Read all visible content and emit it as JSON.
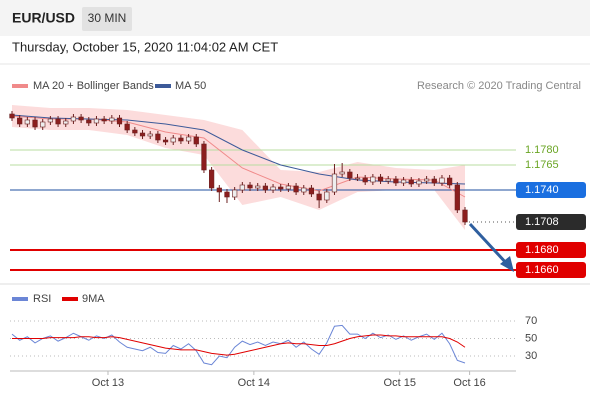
{
  "header": {
    "symbol": "EUR/USD",
    "interval": "30 MIN",
    "timestamp": "Thursday, October 15, 2020 11:04:02 AM CET"
  },
  "chart_data": [
    {
      "type": "candlestick",
      "credit": "Research © 2020 Trading Central",
      "ylim": [
        1.1645,
        1.185
      ],
      "xlim": [
        0,
        59
      ],
      "up_color": "#eeeeee",
      "down_color": "#8b1e1e",
      "ohlc": [
        [
          1.1816,
          1.1819,
          1.1809,
          1.1812
        ],
        [
          1.1812,
          1.1815,
          1.1803,
          1.1806
        ],
        [
          1.1806,
          1.1813,
          1.1803,
          1.181
        ],
        [
          1.181,
          1.1813,
          1.18,
          1.1803
        ],
        [
          1.1803,
          1.1811,
          1.18,
          1.1808
        ],
        [
          1.1808,
          1.1814,
          1.1805,
          1.1811
        ],
        [
          1.1811,
          1.1814,
          1.1803,
          1.1806
        ],
        [
          1.1806,
          1.1812,
          1.1803,
          1.1809
        ],
        [
          1.1809,
          1.1816,
          1.1806,
          1.1813
        ],
        [
          1.1813,
          1.1816,
          1.1807,
          1.181
        ],
        [
          1.181,
          1.1813,
          1.1804,
          1.1807
        ],
        [
          1.1807,
          1.1814,
          1.1804,
          1.1811
        ],
        [
          1.1811,
          1.1814,
          1.1806,
          1.1809
        ],
        [
          1.1809,
          1.1815,
          1.1806,
          1.1812
        ],
        [
          1.1812,
          1.1815,
          1.1803,
          1.1806
        ],
        [
          1.1806,
          1.1809,
          1.1797,
          1.18
        ],
        [
          1.18,
          1.1803,
          1.1794,
          1.1797
        ],
        [
          1.1797,
          1.18,
          1.1791,
          1.1794
        ],
        [
          1.1794,
          1.1799,
          1.1791,
          1.1796
        ],
        [
          1.1796,
          1.1799,
          1.1787,
          1.179
        ],
        [
          1.179,
          1.1793,
          1.1785,
          1.1788
        ],
        [
          1.1788,
          1.1795,
          1.1785,
          1.1792
        ],
        [
          1.1792,
          1.1795,
          1.1786,
          1.1789
        ],
        [
          1.1789,
          1.1796,
          1.1786,
          1.1793
        ],
        [
          1.1793,
          1.1796,
          1.1783,
          1.1786
        ],
        [
          1.1786,
          1.1789,
          1.1757,
          1.176
        ],
        [
          1.176,
          1.1763,
          1.1739,
          1.1742
        ],
        [
          1.1742,
          1.1745,
          1.1728,
          1.1738
        ],
        [
          1.1738,
          1.1741,
          1.1727,
          1.1733
        ],
        [
          1.1733,
          1.1743,
          1.173,
          1.174
        ],
        [
          1.174,
          1.1748,
          1.1737,
          1.1745
        ],
        [
          1.1745,
          1.1748,
          1.1739,
          1.1742
        ],
        [
          1.1742,
          1.1747,
          1.1739,
          1.1744
        ],
        [
          1.1744,
          1.1747,
          1.1737,
          1.174
        ],
        [
          1.174,
          1.1746,
          1.1737,
          1.1743
        ],
        [
          1.1743,
          1.1746,
          1.1738,
          1.1741
        ],
        [
          1.1741,
          1.1747,
          1.1738,
          1.1744
        ],
        [
          1.1744,
          1.1747,
          1.1735,
          1.1738
        ],
        [
          1.1738,
          1.1745,
          1.1735,
          1.1742
        ],
        [
          1.1742,
          1.1745,
          1.1733,
          1.1736
        ],
        [
          1.1736,
          1.1739,
          1.1722,
          1.173
        ],
        [
          1.173,
          1.1741,
          1.1727,
          1.1738
        ],
        [
          1.1738,
          1.1766,
          1.1735,
          1.1756
        ],
        [
          1.1756,
          1.1767,
          1.1753,
          1.1758
        ],
        [
          1.1758,
          1.1761,
          1.1749,
          1.1752
        ],
        [
          1.1752,
          1.1756,
          1.1749,
          1.1752
        ],
        [
          1.1752,
          1.1755,
          1.1745,
          1.1748
        ],
        [
          1.1748,
          1.1756,
          1.1745,
          1.1753
        ],
        [
          1.1753,
          1.1756,
          1.1746,
          1.1749
        ],
        [
          1.1749,
          1.1754,
          1.1746,
          1.1751
        ],
        [
          1.1751,
          1.1754,
          1.1744,
          1.1747
        ],
        [
          1.1747,
          1.1753,
          1.1744,
          1.175
        ],
        [
          1.175,
          1.1753,
          1.1743,
          1.1746
        ],
        [
          1.1746,
          1.1752,
          1.1743,
          1.1749
        ],
        [
          1.1749,
          1.1754,
          1.1746,
          1.1751
        ],
        [
          1.1751,
          1.1754,
          1.1744,
          1.1747
        ],
        [
          1.1747,
          1.1755,
          1.1744,
          1.1752
        ],
        [
          1.1752,
          1.1755,
          1.1742,
          1.1745
        ],
        [
          1.1745,
          1.1748,
          1.1717,
          1.172
        ],
        [
          1.172,
          1.1723,
          1.1705,
          1.1708
        ]
      ],
      "overlays": [
        {
          "name": "MA 20 + Bollinger Bands",
          "color": "#f08a8a",
          "band_color": "#fbd3d3",
          "x": [
            0,
            5,
            10,
            15,
            20,
            25,
            30,
            35,
            40,
            45,
            50,
            55,
            59
          ],
          "values": [
            1.1814,
            1.1811,
            1.1811,
            1.1808,
            1.1798,
            1.1792,
            1.1762,
            1.1746,
            1.1739,
            1.1753,
            1.1751,
            1.175,
            1.1733
          ],
          "upper": [
            1.1825,
            1.1822,
            1.1822,
            1.182,
            1.1815,
            1.181,
            1.18,
            1.176,
            1.1758,
            1.1768,
            1.1762,
            1.176,
            1.1765
          ],
          "lower": [
            1.1803,
            1.18,
            1.18,
            1.1795,
            1.1782,
            1.1775,
            1.1725,
            1.1733,
            1.172,
            1.1738,
            1.174,
            1.174,
            1.17
          ]
        },
        {
          "name": "MA 50",
          "color": "#3d5a99",
          "x": [
            0,
            5,
            10,
            15,
            20,
            25,
            30,
            35,
            40,
            45,
            50,
            55,
            59
          ],
          "values": [
            1.1815,
            1.1812,
            1.1811,
            1.181,
            1.1806,
            1.18,
            1.178,
            1.1765,
            1.1756,
            1.175,
            1.1748,
            1.1747,
            1.1746
          ]
        }
      ],
      "levels": [
        {
          "value": 1.178,
          "label": "1.1780",
          "color": "#6aa524",
          "line_color": "#b9dca0",
          "boxed": false,
          "dotted": false
        },
        {
          "value": 1.1765,
          "label": "1.1765",
          "color": "#6aa524",
          "line_color": "#b9dca0",
          "boxed": false,
          "dotted": false
        },
        {
          "value": 1.174,
          "label": "1.1740",
          "color": "#1a6fe0",
          "line_color": "#1f4f9f",
          "boxed": true,
          "dotted": false
        },
        {
          "value": 1.1708,
          "label": "1.1708",
          "color": "#2b2b2b",
          "line_color": "#555555",
          "boxed": true,
          "dotted": true
        },
        {
          "value": 1.168,
          "label": "1.1680",
          "color": "#e00000",
          "line_color": "#e00000",
          "boxed": true,
          "dotted": false
        },
        {
          "value": 1.166,
          "label": "1.1660",
          "color": "#e00000",
          "line_color": "#e00000",
          "boxed": true,
          "dotted": false
        }
      ]
    },
    {
      "type": "line",
      "ylim": [
        14,
        86
      ],
      "yticks": [
        30,
        50,
        70
      ],
      "xlim": [
        0,
        59
      ],
      "xticks": [
        {
          "value": 12.5,
          "label": "Oct 13"
        },
        {
          "value": 31.5,
          "label": "Oct 14"
        },
        {
          "value": 50.5,
          "label": "Oct 15"
        },
        {
          "value": 59.6,
          "label": "Oct 16"
        }
      ],
      "series": [
        {
          "name": "RSI",
          "color": "#6b86d6",
          "values": [
            55,
            48,
            52,
            45,
            50,
            53,
            47,
            51,
            56,
            52,
            48,
            53,
            50,
            54,
            46,
            40,
            38,
            36,
            40,
            34,
            33,
            42,
            38,
            44,
            36,
            22,
            20,
            30,
            28,
            40,
            47,
            43,
            46,
            42,
            46,
            44,
            48,
            40,
            46,
            38,
            32,
            45,
            64,
            65,
            55,
            55,
            50,
            56,
            51,
            54,
            49,
            53,
            48,
            52,
            55,
            49,
            56,
            44,
            25,
            22
          ]
        },
        {
          "name": "9MA",
          "color": "#e00000",
          "values": [
            50,
            50,
            50,
            50,
            50,
            51,
            51,
            51,
            51,
            52,
            52,
            51,
            51,
            52,
            51,
            49,
            47,
            45,
            43,
            41,
            39,
            38,
            37,
            37,
            37,
            35,
            33,
            32,
            31,
            32,
            34,
            36,
            38,
            40,
            42,
            44,
            45,
            44,
            44,
            43,
            42,
            42,
            44,
            47,
            50,
            52,
            53,
            54,
            54,
            53,
            53,
            52,
            52,
            52,
            52,
            52,
            52,
            50,
            46,
            40
          ]
        }
      ]
    }
  ]
}
